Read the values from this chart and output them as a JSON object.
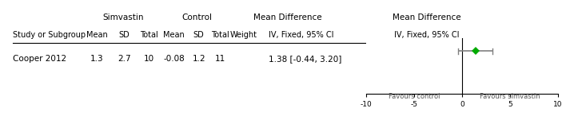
{
  "title_row1_left": "Simvastin",
  "title_row1_control": "Control",
  "title_row1_md": "Mean Difference",
  "title_row1_md2": "Mean Difference",
  "header_cols": [
    "Study or Subgroup",
    "Mean",
    "SD",
    "Total",
    "Mean",
    "SD",
    "Total",
    "Weight",
    "IV, Fixed, 95% CI",
    "IV, Fixed, 95% CI"
  ],
  "study": "Cooper 2012",
  "sim_mean": 1.3,
  "sim_sd": 2.7,
  "sim_total": 10,
  "ctrl_mean": -0.08,
  "ctrl_sd": 1.2,
  "ctrl_total": 11,
  "weight": "",
  "md_text": "1.38 [-0.44, 3.20]",
  "md_value": 1.38,
  "md_lower": -0.44,
  "md_upper": 3.2,
  "axis_min": -10,
  "axis_max": 10,
  "axis_ticks": [
    -10,
    -5,
    0,
    5,
    10
  ],
  "favours_left": "Favours control",
  "favours_right": "Favours simvastin",
  "diamond_color": "#808080",
  "ci_line_color": "#808080",
  "point_color": "#00aa00",
  "text_color": "#000000",
  "header_color": "#000000",
  "background_color": "#ffffff",
  "fig_width": 8.0,
  "fig_height": 1.35
}
